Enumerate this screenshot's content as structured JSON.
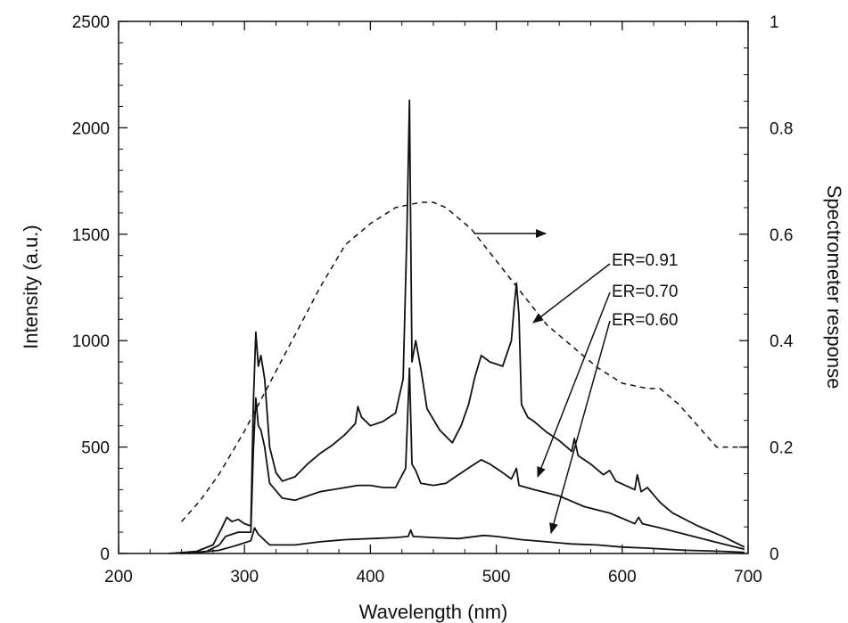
{
  "chart_data": {
    "type": "line",
    "xlabel": "Wavelength (nm)",
    "ylabel": "Intensity (a.u.)",
    "y2label": "Spectrometer response",
    "xlim": [
      200,
      700
    ],
    "ylim": [
      0,
      2500
    ],
    "y2lim": [
      0,
      1
    ],
    "x_ticks": [
      200,
      300,
      400,
      500,
      600,
      700
    ],
    "x_tick_labels": [
      "200",
      "300",
      "400",
      "500",
      "600",
      "700"
    ],
    "y_ticks": [
      0,
      500,
      1000,
      1500,
      2000,
      2500
    ],
    "y_tick_labels": [
      "0",
      "500",
      "1000",
      "1500",
      "2000",
      "2500"
    ],
    "y2_ticks": [
      0,
      0.2,
      0.4,
      0.6,
      0.8,
      1
    ],
    "y2_tick_labels": [
      "0",
      "0.2",
      "0.4",
      "0.6",
      "0.8",
      "1"
    ],
    "grid": false,
    "series": [
      {
        "label": "ER=0.91",
        "axis": "left",
        "style": "solid",
        "points": [
          [
            240,
            0
          ],
          [
            262,
            10
          ],
          [
            275,
            40
          ],
          [
            282,
            120
          ],
          [
            286,
            170
          ],
          [
            290,
            150
          ],
          [
            295,
            160
          ],
          [
            300,
            140
          ],
          [
            305,
            130
          ],
          [
            307,
            700
          ],
          [
            309,
            1040
          ],
          [
            311,
            880
          ],
          [
            313,
            930
          ],
          [
            316,
            820
          ],
          [
            320,
            500
          ],
          [
            325,
            380
          ],
          [
            330,
            340
          ],
          [
            340,
            360
          ],
          [
            350,
            420
          ],
          [
            360,
            470
          ],
          [
            370,
            510
          ],
          [
            380,
            560
          ],
          [
            388,
            610
          ],
          [
            390,
            690
          ],
          [
            393,
            640
          ],
          [
            400,
            600
          ],
          [
            410,
            620
          ],
          [
            420,
            660
          ],
          [
            426,
            820
          ],
          [
            429,
            1500
          ],
          [
            431,
            2130
          ],
          [
            433,
            900
          ],
          [
            436,
            1000
          ],
          [
            440,
            870
          ],
          [
            445,
            680
          ],
          [
            455,
            580
          ],
          [
            465,
            520
          ],
          [
            472,
            600
          ],
          [
            478,
            700
          ],
          [
            483,
            830
          ],
          [
            488,
            930
          ],
          [
            495,
            900
          ],
          [
            505,
            880
          ],
          [
            512,
            1000
          ],
          [
            514,
            1150
          ],
          [
            516,
            1270
          ],
          [
            518,
            1120
          ],
          [
            520,
            700
          ],
          [
            525,
            640
          ],
          [
            530,
            620
          ],
          [
            540,
            570
          ],
          [
            550,
            530
          ],
          [
            560,
            480
          ],
          [
            562,
            540
          ],
          [
            565,
            460
          ],
          [
            575,
            420
          ],
          [
            585,
            370
          ],
          [
            590,
            390
          ],
          [
            595,
            340
          ],
          [
            610,
            300
          ],
          [
            612,
            370
          ],
          [
            615,
            290
          ],
          [
            620,
            310
          ],
          [
            630,
            240
          ],
          [
            640,
            190
          ],
          [
            660,
            130
          ],
          [
            680,
            80
          ],
          [
            697,
            30
          ]
        ]
      },
      {
        "label": "ER=0.70",
        "axis": "left",
        "style": "solid",
        "points": [
          [
            250,
            0
          ],
          [
            270,
            10
          ],
          [
            280,
            40
          ],
          [
            285,
            80
          ],
          [
            295,
            100
          ],
          [
            305,
            100
          ],
          [
            307,
            480
          ],
          [
            309,
            730
          ],
          [
            311,
            600
          ],
          [
            313,
            580
          ],
          [
            316,
            500
          ],
          [
            320,
            330
          ],
          [
            330,
            260
          ],
          [
            340,
            250
          ],
          [
            350,
            270
          ],
          [
            360,
            290
          ],
          [
            370,
            300
          ],
          [
            380,
            310
          ],
          [
            390,
            320
          ],
          [
            400,
            320
          ],
          [
            410,
            310
          ],
          [
            420,
            310
          ],
          [
            428,
            400
          ],
          [
            431,
            870
          ],
          [
            433,
            420
          ],
          [
            436,
            390
          ],
          [
            440,
            330
          ],
          [
            450,
            320
          ],
          [
            460,
            330
          ],
          [
            470,
            370
          ],
          [
            480,
            410
          ],
          [
            488,
            440
          ],
          [
            495,
            420
          ],
          [
            505,
            380
          ],
          [
            512,
            350
          ],
          [
            516,
            400
          ],
          [
            518,
            320
          ],
          [
            530,
            300
          ],
          [
            550,
            270
          ],
          [
            570,
            220
          ],
          [
            590,
            190
          ],
          [
            610,
            140
          ],
          [
            613,
            170
          ],
          [
            616,
            140
          ],
          [
            630,
            120
          ],
          [
            650,
            90
          ],
          [
            670,
            60
          ],
          [
            697,
            20
          ]
        ]
      },
      {
        "label": "ER=0.60",
        "axis": "left",
        "style": "solid",
        "points": [
          [
            255,
            0
          ],
          [
            280,
            15
          ],
          [
            295,
            40
          ],
          [
            305,
            60
          ],
          [
            308,
            120
          ],
          [
            311,
            90
          ],
          [
            320,
            40
          ],
          [
            340,
            40
          ],
          [
            360,
            55
          ],
          [
            380,
            65
          ],
          [
            400,
            70
          ],
          [
            420,
            75
          ],
          [
            430,
            80
          ],
          [
            432,
            110
          ],
          [
            434,
            80
          ],
          [
            450,
            75
          ],
          [
            470,
            70
          ],
          [
            490,
            85
          ],
          [
            500,
            80
          ],
          [
            520,
            65
          ],
          [
            540,
            55
          ],
          [
            560,
            45
          ],
          [
            580,
            40
          ],
          [
            600,
            30
          ],
          [
            620,
            25
          ],
          [
            650,
            15
          ],
          [
            680,
            10
          ],
          [
            697,
            5
          ]
        ]
      },
      {
        "label": "Spectrometer response",
        "axis": "right",
        "style": "dashed",
        "points": [
          [
            250,
            0.06
          ],
          [
            265,
            0.1
          ],
          [
            280,
            0.15
          ],
          [
            300,
            0.23
          ],
          [
            320,
            0.32
          ],
          [
            340,
            0.41
          ],
          [
            360,
            0.5
          ],
          [
            380,
            0.58
          ],
          [
            400,
            0.62
          ],
          [
            420,
            0.65
          ],
          [
            440,
            0.66
          ],
          [
            450,
            0.66
          ],
          [
            460,
            0.65
          ],
          [
            480,
            0.61
          ],
          [
            500,
            0.55
          ],
          [
            520,
            0.49
          ],
          [
            540,
            0.43
          ],
          [
            560,
            0.39
          ],
          [
            580,
            0.35
          ],
          [
            600,
            0.32
          ],
          [
            620,
            0.31
          ],
          [
            630,
            0.31
          ],
          [
            645,
            0.28
          ],
          [
            660,
            0.24
          ],
          [
            675,
            0.2
          ],
          [
            700,
            0.2
          ]
        ]
      }
    ],
    "annotations": {
      "er091": "ER=0.91",
      "er070": "ER=0.70",
      "er060": "ER=0.60"
    }
  }
}
